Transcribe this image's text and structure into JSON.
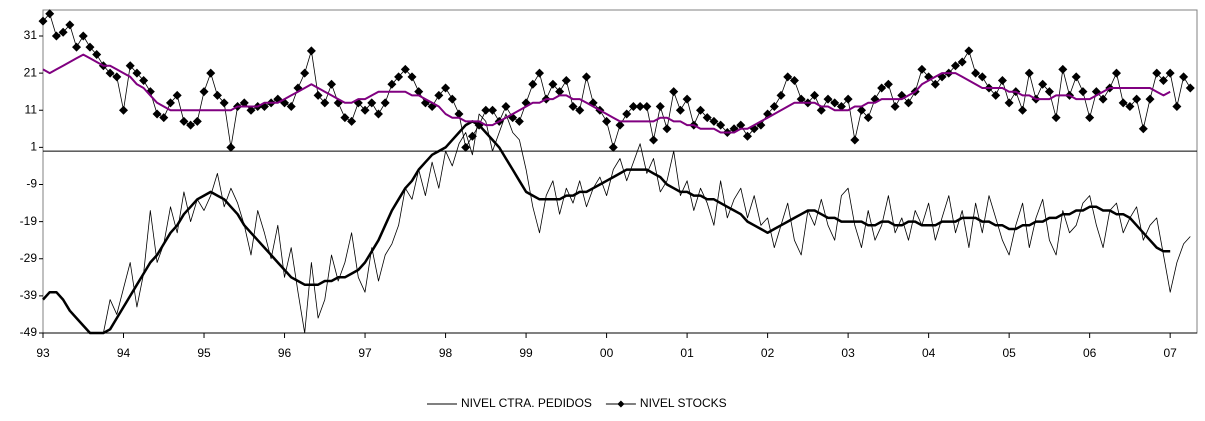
{
  "chart_data": {
    "type": "line",
    "categories": [
      "93",
      null,
      null,
      null,
      null,
      null,
      null,
      null,
      null,
      null,
      null,
      null,
      "94",
      null,
      null,
      null,
      null,
      null,
      null,
      null,
      null,
      null,
      null,
      null,
      "95",
      null,
      null,
      null,
      null,
      null,
      null,
      null,
      null,
      null,
      null,
      null,
      "96",
      null,
      null,
      null,
      null,
      null,
      null,
      null,
      null,
      null,
      null,
      null,
      "97",
      null,
      null,
      null,
      null,
      null,
      null,
      null,
      null,
      null,
      null,
      null,
      "98",
      null,
      null,
      null,
      null,
      null,
      null,
      null,
      null,
      null,
      null,
      null,
      "99",
      null,
      null,
      null,
      null,
      null,
      null,
      null,
      null,
      null,
      null,
      null,
      "00",
      null,
      null,
      null,
      null,
      null,
      null,
      null,
      null,
      null,
      null,
      null,
      "01",
      null,
      null,
      null,
      null,
      null,
      null,
      null,
      null,
      null,
      null,
      null,
      "02",
      null,
      null,
      null,
      null,
      null,
      null,
      null,
      null,
      null,
      null,
      null,
      "03",
      null,
      null,
      null,
      null,
      null,
      null,
      null,
      null,
      null,
      null,
      null,
      "04",
      null,
      null,
      null,
      null,
      null,
      null,
      null,
      null,
      null,
      null,
      null,
      "05",
      null,
      null,
      null,
      null,
      null,
      null,
      null,
      null,
      null,
      null,
      null,
      "06",
      null,
      null,
      null,
      null,
      null,
      null,
      null,
      null,
      null,
      null,
      null,
      "07",
      null,
      null,
      null
    ],
    "series": [
      {
        "name": "NIVEL CTRA. PEDIDOS",
        "color": "#000000",
        "width": 0.8,
        "marker": "none",
        "values": [
          null,
          null,
          null,
          null,
          null,
          null,
          null,
          null,
          null,
          -49,
          -40,
          -44,
          -37,
          -30,
          -42,
          -33,
          -16,
          -30,
          -25,
          -15,
          -22,
          -11,
          -19,
          -13,
          -16,
          -12,
          -6,
          -15,
          -10,
          -14,
          -20,
          -28,
          -16,
          -22,
          -29,
          -20,
          -34,
          -26,
          -38,
          -49,
          -30,
          -45,
          -40,
          -28,
          -35,
          -30,
          -22,
          -34,
          -38,
          -26,
          -35,
          -28,
          -25,
          -20,
          -10,
          -13,
          -5,
          -12,
          -3,
          -10,
          0,
          -4,
          2,
          5,
          -1,
          10,
          8,
          0,
          5,
          10,
          5,
          3,
          -5,
          -15,
          -22,
          -12,
          -8,
          -17,
          -10,
          -14,
          -8,
          -15,
          -10,
          -7,
          -12,
          -5,
          -2,
          -8,
          -3,
          2,
          -6,
          -2,
          -11,
          -8,
          0,
          -12,
          -8,
          -16,
          -10,
          -14,
          -20,
          -8,
          -18,
          -13,
          -10,
          -18,
          -12,
          -20,
          -18,
          -26,
          -20,
          -14,
          -24,
          -28,
          -16,
          -20,
          -13,
          -20,
          -24,
          -12,
          -10,
          -20,
          -26,
          -16,
          -24,
          -20,
          -12,
          -22,
          -18,
          -24,
          -16,
          -20,
          -14,
          -24,
          -18,
          -12,
          -22,
          -16,
          -26,
          -14,
          -22,
          -12,
          -18,
          -24,
          -28,
          -20,
          -14,
          -26,
          -18,
          -13,
          -24,
          -28,
          -16,
          -22,
          -20,
          -14,
          -12,
          -20,
          -26,
          -16,
          -14,
          -22,
          -18,
          -15,
          -24,
          -20,
          -18,
          -28,
          -38,
          -30,
          -25,
          -23
        ]
      },
      {
        "name": "NIVEL STOCKS",
        "color": "#000000",
        "width": 0.8,
        "marker": "diamond",
        "values": [
          35,
          37,
          31,
          32,
          34,
          28,
          31,
          28,
          26,
          23,
          21,
          20,
          11,
          23,
          21,
          19,
          16,
          10,
          9,
          13,
          15,
          8,
          7,
          8,
          16,
          21,
          15,
          13,
          1,
          12,
          13,
          11,
          12,
          12,
          13,
          14,
          13,
          12,
          17,
          21,
          27,
          15,
          13,
          18,
          13,
          9,
          8,
          13,
          11,
          13,
          10,
          13,
          18,
          20,
          22,
          20,
          16,
          13,
          12,
          15,
          17,
          14,
          10,
          1,
          4,
          7,
          11,
          11,
          8,
          12,
          9,
          8,
          13,
          18,
          21,
          14,
          18,
          16,
          19,
          12,
          11,
          20,
          13,
          11,
          8,
          1,
          7,
          10,
          12,
          12,
          12,
          3,
          12,
          6,
          16,
          11,
          14,
          7,
          11,
          9,
          8,
          7,
          5,
          6,
          7,
          4,
          6,
          7,
          10,
          12,
          15,
          20,
          19,
          14,
          13,
          15,
          11,
          14,
          13,
          12,
          14,
          3,
          11,
          9,
          14,
          17,
          18,
          12,
          15,
          13,
          16,
          22,
          20,
          18,
          20,
          21,
          23,
          24,
          27,
          21,
          20,
          17,
          15,
          19,
          13,
          16,
          11,
          21,
          14,
          18,
          16,
          9,
          22,
          15,
          20,
          16,
          9,
          16,
          14,
          17,
          21,
          13,
          12,
          14,
          6,
          14,
          21,
          19,
          21,
          12,
          20,
          17
        ]
      },
      {
        "color": "#000000",
        "width": 2.5,
        "marker": "none",
        "values": [
          -40,
          -38,
          -38,
          -40,
          -43,
          -45,
          -47,
          -49,
          -49,
          -49,
          -48,
          -45,
          -42,
          -39,
          -36,
          -33,
          -30,
          -28,
          -25,
          -22,
          -20,
          -17,
          -15,
          -13,
          -12,
          -11,
          -12,
          -13,
          -15,
          -17,
          -20,
          -22,
          -24,
          -26,
          -28,
          -30,
          -32,
          -34,
          -35,
          -36,
          -36,
          -36,
          -35,
          -35,
          -34,
          -34,
          -33,
          -32,
          -30,
          -27,
          -24,
          -20,
          -16,
          -13,
          -10,
          -8,
          -5,
          -3,
          -1,
          0,
          1,
          3,
          5,
          7,
          8,
          7,
          5,
          3,
          1,
          -2,
          -5,
          -8,
          -11,
          -12,
          -13,
          -13,
          -13,
          -13,
          -12,
          -12,
          -11,
          -11,
          -10,
          -9,
          -8,
          -7,
          -6,
          -5,
          -5,
          -5,
          -5,
          -6,
          -7,
          -9,
          -10,
          -11,
          -11,
          -12,
          -12,
          -13,
          -13,
          -14,
          -15,
          -16,
          -17,
          -19,
          -20,
          -21,
          -22,
          -21,
          -20,
          -19,
          -18,
          -17,
          -16,
          -16,
          -17,
          -18,
          -18,
          -19,
          -19,
          -19,
          -19,
          -20,
          -20,
          -19,
          -19,
          -20,
          -20,
          -19,
          -19,
          -20,
          -20,
          -20,
          -19,
          -19,
          -19,
          -18,
          -18,
          -18,
          -19,
          -19,
          -20,
          -20,
          -21,
          -21,
          -20,
          -20,
          -19,
          -19,
          -18,
          -18,
          -17,
          -17,
          -16,
          -16,
          -15,
          -15,
          -16,
          -16,
          -17,
          -17,
          -18,
          -20,
          -22,
          -24,
          -26,
          -27,
          -27,
          null,
          null,
          null
        ]
      },
      {
        "color": "#800080",
        "width": 2,
        "marker": "none",
        "values": [
          22,
          21,
          22,
          23,
          24,
          25,
          26,
          25,
          24,
          23,
          23,
          22,
          21,
          20,
          18,
          17,
          15,
          13,
          12,
          11,
          11,
          11,
          11,
          11,
          11,
          11,
          11,
          11,
          11,
          12,
          12,
          12,
          12,
          13,
          13,
          13,
          14,
          15,
          16,
          17,
          18,
          17,
          16,
          15,
          14,
          13,
          13,
          14,
          14,
          15,
          16,
          16,
          16,
          16,
          16,
          15,
          15,
          14,
          13,
          12,
          10,
          9,
          9,
          8,
          8,
          8,
          7,
          7,
          8,
          9,
          10,
          11,
          12,
          13,
          13,
          14,
          14,
          15,
          15,
          14,
          14,
          13,
          12,
          11,
          10,
          9,
          8,
          8,
          8,
          8,
          8,
          8,
          9,
          9,
          8,
          8,
          7,
          7,
          6,
          6,
          6,
          5,
          5,
          5,
          6,
          6,
          7,
          8,
          9,
          10,
          11,
          12,
          13,
          13,
          13,
          13,
          12,
          12,
          11,
          11,
          11,
          12,
          12,
          13,
          13,
          14,
          14,
          14,
          14,
          15,
          16,
          18,
          19,
          20,
          21,
          21,
          21,
          20,
          19,
          18,
          17,
          17,
          17,
          17,
          16,
          16,
          15,
          15,
          14,
          14,
          14,
          15,
          15,
          15,
          14,
          14,
          14,
          15,
          16,
          17,
          17,
          17,
          17,
          17,
          17,
          17,
          16,
          15,
          16,
          null,
          null,
          null
        ]
      }
    ],
    "ylim": [
      -49,
      38
    ],
    "yticks": [
      31,
      21,
      11,
      1,
      -9,
      -19,
      -29,
      -39,
      -49
    ],
    "reference_line": 0,
    "legend": "bottom"
  }
}
